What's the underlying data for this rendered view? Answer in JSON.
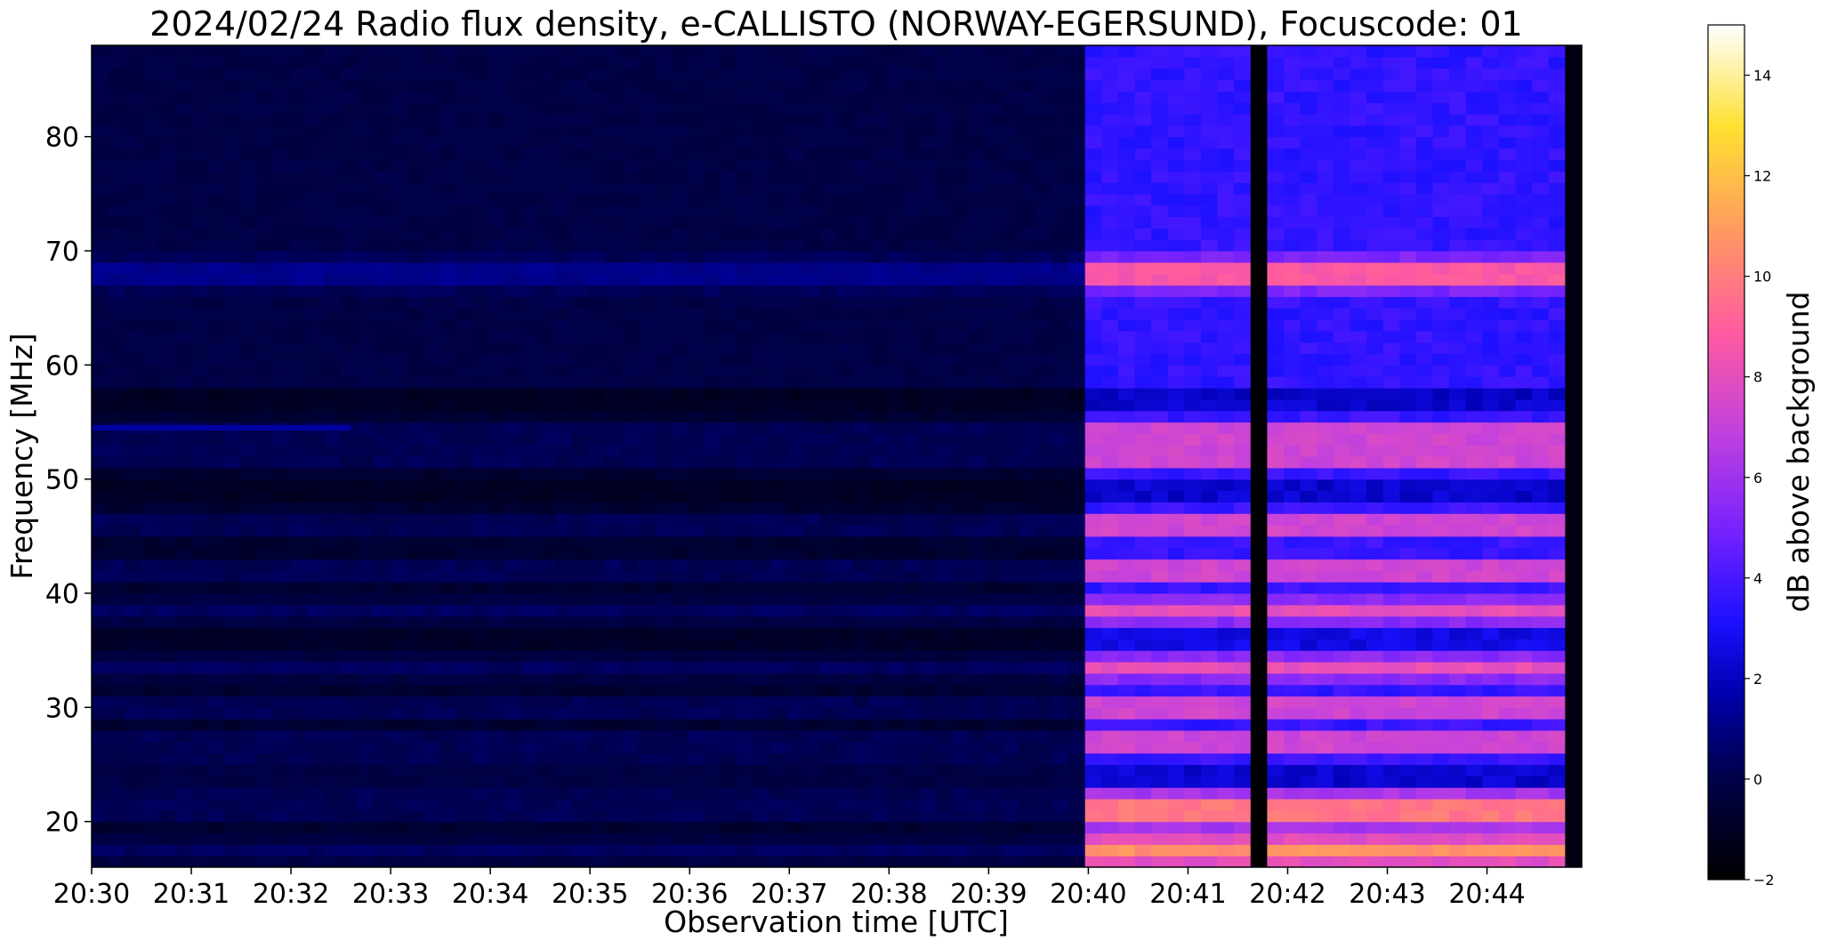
{
  "chart_data": {
    "type": "heatmap",
    "title": "2024/02/24  Radio flux density, e-CALLISTO (NORWAY-EGERSUND), Focuscode: 01",
    "xlabel": "Observation time [UTC]",
    "ylabel": "Frequency [MHz]",
    "x_ticks": [
      "20:30",
      "20:31",
      "20:32",
      "20:33",
      "20:34",
      "20:35",
      "20:36",
      "20:37",
      "20:38",
      "20:39",
      "20:40",
      "20:41",
      "20:42",
      "20:43",
      "20:44"
    ],
    "y_ticks": [
      20,
      30,
      40,
      50,
      60,
      70,
      80
    ],
    "x_range_minutes_after_2030": [
      0,
      14.95
    ],
    "ylim": [
      16,
      88
    ],
    "colorbar": {
      "label": "dB above background",
      "ticks": [
        -2,
        0,
        2,
        4,
        6,
        8,
        10,
        12,
        14
      ],
      "range": [
        -2,
        15
      ],
      "colormap": "gnuplot2"
    },
    "features": {
      "burst_start_minutes_after_2030": 9.9,
      "data_gap_minutes_after_2030": [
        11.69,
        11.81
      ],
      "strong_bands_mhz": [
        17.5,
        21,
        27,
        30,
        33.5,
        38.5,
        42,
        46,
        52,
        54,
        68
      ],
      "early_narrowband_line_mhz": 54.5,
      "early_narrowband_line_end_minutes_after_2030": 2.6
    }
  }
}
